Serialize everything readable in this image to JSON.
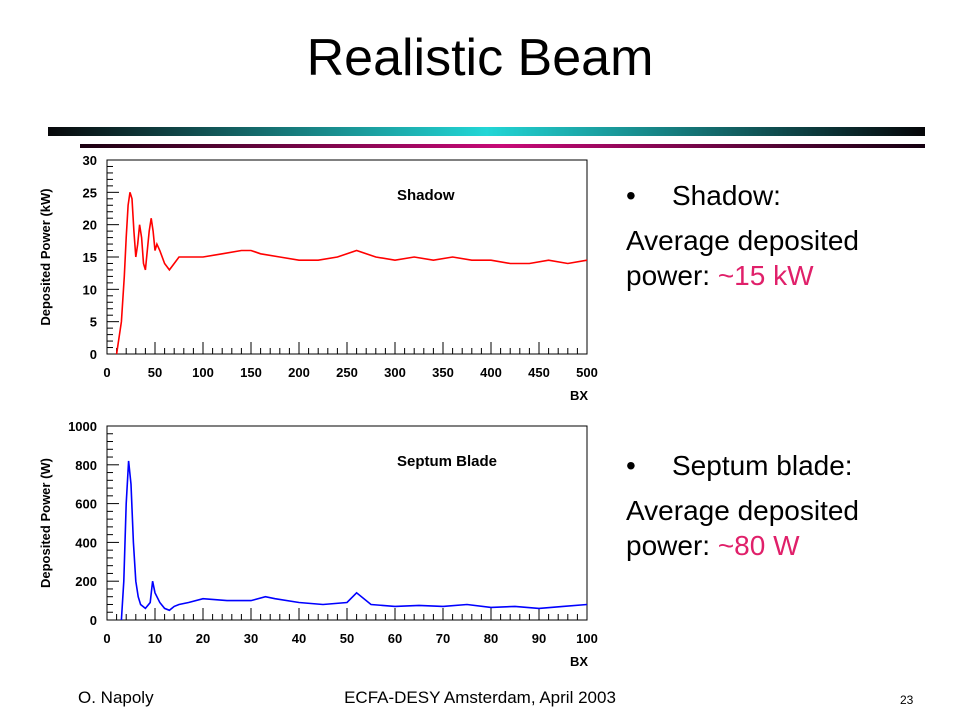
{
  "slide": {
    "title": "Realistic Beam",
    "footer_left": "O. Napoly",
    "footer_center": "ECFA-DESY Amsterdam, April 2003",
    "page_number": "23"
  },
  "bullets": [
    {
      "marker": "•",
      "heading": "Shadow:",
      "text": "Average deposited power:",
      "value": "~15 kW"
    },
    {
      "marker": "•",
      "heading": "Septum blade:",
      "text": "Average deposited power:",
      "value": "~80 W"
    }
  ],
  "colors": {
    "accent": "#e0206a",
    "shadow_series": "#ff0000",
    "septum_series": "#0000ff"
  },
  "chart_data": [
    {
      "type": "line",
      "title": "Shadow",
      "xlabel": "BX",
      "ylabel": "Deposited Power (kW)",
      "xlim": [
        0,
        500
      ],
      "ylim": [
        0,
        30
      ],
      "xticks": [
        0,
        50,
        100,
        150,
        200,
        250,
        300,
        350,
        400,
        450,
        500
      ],
      "yticks": [
        0,
        5,
        10,
        15,
        20,
        25,
        30
      ],
      "series": [
        {
          "color": "#ff0000",
          "x": [
            10,
            15,
            18,
            20,
            22,
            24,
            26,
            28,
            30,
            32,
            34,
            36,
            38,
            40,
            42,
            44,
            46,
            48,
            50,
            52,
            55,
            60,
            65,
            70,
            75,
            80,
            90,
            100,
            120,
            140,
            150,
            160,
            180,
            200,
            220,
            240,
            250,
            260,
            280,
            300,
            320,
            340,
            360,
            380,
            400,
            420,
            440,
            460,
            480,
            500
          ],
          "y": [
            0,
            5,
            12,
            18,
            23,
            25,
            24,
            19,
            15,
            17,
            20,
            18,
            14,
            13,
            16,
            19,
            21,
            19,
            16,
            17,
            16,
            14,
            13,
            14,
            15,
            15,
            15,
            15,
            15.5,
            16,
            16,
            15.5,
            15,
            14.5,
            14.5,
            15,
            15.5,
            16,
            15,
            14.5,
            15,
            14.5,
            15,
            14.5,
            14.5,
            14,
            14,
            14.5,
            14,
            14.5
          ]
        }
      ]
    },
    {
      "type": "line",
      "title": "Septum Blade",
      "xlabel": "BX",
      "ylabel": "Deposited Power (W)",
      "xlim": [
        0,
        100
      ],
      "ylim": [
        0,
        1000
      ],
      "xticks": [
        0,
        10,
        20,
        30,
        40,
        50,
        60,
        70,
        80,
        90,
        100
      ],
      "yticks": [
        0,
        200,
        400,
        600,
        800,
        1000
      ],
      "series": [
        {
          "color": "#0000ff",
          "x": [
            3,
            3.5,
            4,
            4.5,
            5,
            5.5,
            6,
            6.5,
            7,
            8,
            9,
            9.5,
            10,
            11,
            12,
            13,
            14,
            15,
            17,
            20,
            25,
            30,
            33,
            35,
            40,
            45,
            50,
            52,
            55,
            60,
            65,
            70,
            75,
            80,
            85,
            90,
            95,
            100
          ],
          "y": [
            0,
            200,
            600,
            820,
            700,
            400,
            200,
            120,
            80,
            60,
            90,
            200,
            140,
            90,
            60,
            50,
            70,
            80,
            90,
            110,
            100,
            100,
            120,
            110,
            90,
            80,
            90,
            140,
            80,
            70,
            75,
            70,
            80,
            65,
            70,
            60,
            70,
            80
          ]
        }
      ]
    }
  ]
}
